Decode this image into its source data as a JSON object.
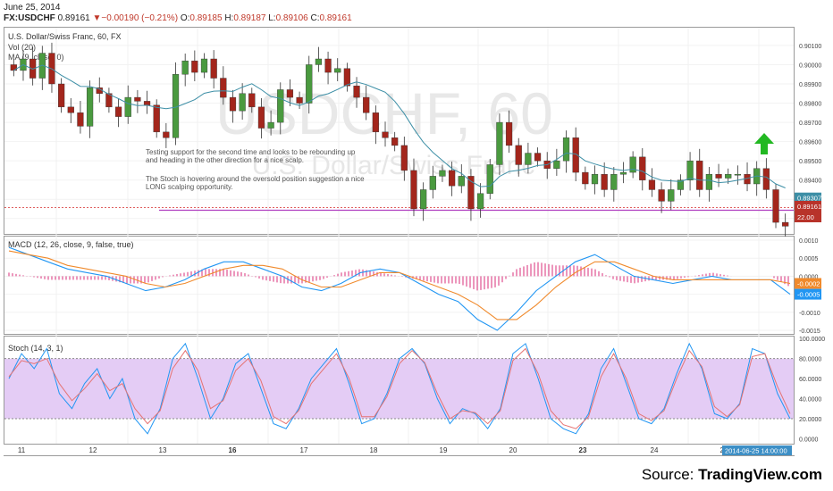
{
  "header": {
    "date": "June 25, 2014",
    "symbol": "FX:USDCHF",
    "last": "0.89161",
    "change": "▼−0.00190 (−0.21%)",
    "open_label": "O:",
    "open": "0.89185",
    "high_label": "H:",
    "high": "0.89187",
    "low_label": "L:",
    "low": "0.89106",
    "close_label": "C:",
    "close": "0.89161"
  },
  "main_pane": {
    "title": "U.S. Dollar/Swiss Franc, 60, FX",
    "vol_label": "Vol (20)",
    "ma_label": "MA (9, close, 0)",
    "watermark_symbol": "USDCHF, 60",
    "watermark_name": "U.S. Dollar/Swiss Franc",
    "note1_line1": "Testing support for the second time and looks to be rebounding up",
    "note1_line2": "and heading in the other direction for a nice scalp.",
    "note2_line1": "The Stoch is hovering around the oversold position suggestion a nice",
    "note2_line2": "LONG scalping opportunity.",
    "price_tag_ma": "0.89307",
    "price_tag_last": "0.89161",
    "price_tag_vol": "22.00"
  },
  "macd_pane": {
    "title": "MACD (12, 26, close, 9, false, true)",
    "tag_signal": "-0.0002",
    "tag_macd": "-0.0005"
  },
  "stoch_pane": {
    "title": "Stoch (14, 3, 1)"
  },
  "time_axis": {
    "labels": [
      "11",
      "12",
      "13",
      "16",
      "17",
      "18",
      "19",
      "20",
      "23",
      "24",
      "25"
    ],
    "bold": [
      "16",
      "23"
    ],
    "cursor": "2014-06-25 14:00:00"
  },
  "source": {
    "prefix": "Source: ",
    "brand": "TradingView.com"
  },
  "colors": {
    "up": "#4a9a3f",
    "down": "#a3261c",
    "ma": "#3d8fa6",
    "macd": "#2196f3",
    "signal": "#f08a2c",
    "hist": "#e0508f",
    "stoch_k": "#2196f3",
    "stoch_d": "#e57373",
    "stoch_band": "#e4ccf5",
    "arrow": "#22b822"
  },
  "chart_data": [
    {
      "type": "candlestick",
      "title": "U.S. Dollar/Swiss Franc, 60, FX",
      "x_labels": [
        "11",
        "12",
        "13",
        "16",
        "17",
        "18",
        "19",
        "20",
        "23",
        "24",
        "25"
      ],
      "y_ticks": [
        0.901,
        0.9,
        0.899,
        0.898,
        0.897,
        0.896,
        0.895,
        0.894,
        0.893,
        0.892
      ],
      "ylim": [
        0.8912,
        0.9016
      ],
      "close_path": [
        0.8997,
        0.9003,
        0.8993,
        0.9006,
        0.899,
        0.8978,
        0.8975,
        0.8968,
        0.8988,
        0.8985,
        0.8978,
        0.8973,
        0.8983,
        0.8981,
        0.8979,
        0.8965,
        0.8962,
        0.8995,
        0.9002,
        0.8996,
        0.9003,
        0.8993,
        0.8983,
        0.8976,
        0.8985,
        0.8978,
        0.8967,
        0.897,
        0.8987,
        0.8983,
        0.898,
        0.9,
        0.9003,
        0.8996,
        0.8998,
        0.8989,
        0.8983,
        0.8975,
        0.8965,
        0.8962,
        0.8958,
        0.8945,
        0.8925,
        0.8935,
        0.8942,
        0.8945,
        0.8937,
        0.8942,
        0.8925,
        0.8933,
        0.8948,
        0.897,
        0.8958,
        0.8948,
        0.8954,
        0.895,
        0.8946,
        0.895,
        0.8962,
        0.8944,
        0.8938,
        0.8943,
        0.8935,
        0.8943,
        0.8944,
        0.8952,
        0.894,
        0.8935,
        0.8929,
        0.8935,
        0.894,
        0.895,
        0.8935,
        0.8943,
        0.8941,
        0.8943,
        0.8943,
        0.8938,
        0.8946,
        0.8935,
        0.8918,
        0.8916
      ],
      "ma_label": "MA (9, close, 0)",
      "ma_last": 0.89307,
      "last_price": 0.89161,
      "vol_last": 22.0
    },
    {
      "type": "line",
      "title": "MACD (12, 26, close, 9, false, true)",
      "y_ticks": [
        0.001,
        0.0005,
        0.0,
        -0.0005,
        -0.001,
        -0.0015
      ],
      "ylim": [
        -0.0016,
        0.0011
      ],
      "series": [
        {
          "name": "MACD",
          "values": [
            0.0008,
            0.0006,
            0.0004,
            0.0002,
            0.0001,
            0.0,
            -0.0002,
            -0.0004,
            -0.0003,
            -0.0001,
            0.0002,
            0.0004,
            0.0004,
            0.0002,
            0.0,
            -0.0003,
            -0.0004,
            -0.0002,
            0.0001,
            0.0002,
            0.0001,
            -0.0002,
            -0.0005,
            -0.0007,
            -0.0012,
            -0.0015,
            -0.001,
            -0.0004,
            0.0,
            0.0004,
            0.0006,
            0.0003,
            0.0,
            -0.0001,
            -0.0002,
            -0.0001,
            0.0,
            -0.0001,
            -0.0001,
            -0.0001,
            -0.0005
          ]
        },
        {
          "name": "Signal",
          "values": [
            0.0007,
            0.0006,
            0.0005,
            0.0003,
            0.0002,
            0.0001,
            0.0,
            -0.0002,
            -0.0003,
            -0.0002,
            0.0,
            0.0002,
            0.0003,
            0.0003,
            0.0002,
            -0.0001,
            -0.0003,
            -0.0003,
            -0.0001,
            0.0001,
            0.0001,
            -0.0001,
            -0.0003,
            -0.0005,
            -0.0008,
            -0.0012,
            -0.0012,
            -0.0008,
            -0.0003,
            0.0001,
            0.0004,
            0.0004,
            0.0002,
            0.0,
            -0.0001,
            -0.0001,
            -0.0001,
            -0.0001,
            -0.0001,
            -0.0001,
            -0.0002
          ]
        }
      ],
      "macd_last": -0.0005,
      "signal_last": -0.0002
    },
    {
      "type": "line",
      "title": "Stoch (14, 3, 1)",
      "y_ticks": [
        100,
        80,
        60,
        40,
        20,
        0
      ],
      "ylim": [
        -5,
        102
      ],
      "band": [
        20,
        80
      ],
      "series": [
        {
          "name": "%K",
          "values": [
            60,
            85,
            70,
            90,
            45,
            30,
            55,
            70,
            40,
            60,
            20,
            5,
            30,
            80,
            95,
            60,
            20,
            40,
            75,
            85,
            50,
            15,
            10,
            30,
            60,
            75,
            90,
            55,
            15,
            20,
            45,
            80,
            90,
            75,
            40,
            15,
            30,
            25,
            10,
            30,
            85,
            95,
            60,
            20,
            10,
            5,
            25,
            70,
            90,
            55,
            20,
            15,
            30,
            65,
            95,
            70,
            25,
            20,
            35,
            90,
            85,
            45,
            20
          ]
        },
        {
          "name": "%D",
          "values": [
            62,
            78,
            75,
            80,
            55,
            38,
            50,
            65,
            48,
            55,
            30,
            15,
            28,
            70,
            88,
            68,
            30,
            38,
            68,
            80,
            58,
            22,
            15,
            28,
            55,
            70,
            85,
            60,
            22,
            22,
            42,
            75,
            88,
            76,
            45,
            20,
            28,
            26,
            15,
            28,
            78,
            90,
            65,
            28,
            14,
            10,
            22,
            62,
            85,
            60,
            25,
            18,
            28,
            60,
            88,
            72,
            32,
            22,
            34,
            82,
            85,
            52,
            25
          ]
        }
      ]
    }
  ]
}
